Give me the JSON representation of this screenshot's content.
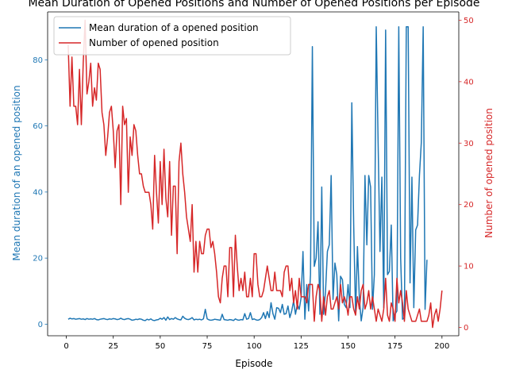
{
  "chart_data": {
    "type": "line",
    "title": "Mean Duration of Opened Positions and Number of Opened Positions per Episode",
    "xlabel": "Episode",
    "ylabel_left": "Mean duration of an opened position",
    "ylabel_right": "Number of opened position",
    "xlim": [
      -9.95,
      208.95
    ],
    "ylim_left": [
      -3.5,
      94.5
    ],
    "ylim_right": [
      -1.35,
      51.35
    ],
    "x_ticks": [
      0,
      25,
      50,
      75,
      100,
      125,
      150,
      175,
      200
    ],
    "y_ticks_left": [
      0,
      20,
      40,
      60,
      80
    ],
    "y_ticks_right": [
      0,
      10,
      20,
      30,
      40,
      50
    ],
    "legend_position": "upper-left",
    "colors": {
      "left": "#1f77b4",
      "right": "#d62728"
    },
    "series": [
      {
        "name": "Mean duration of a opened position",
        "axis": "left",
        "color": "#1f77b4",
        "x_start": 1,
        "values": [
          1.5,
          1.8,
          1.6,
          1.7,
          1.5,
          1.6,
          1.7,
          1.5,
          1.6,
          1.4,
          1.7,
          1.5,
          1.6,
          1.5,
          1.7,
          1.4,
          1.3,
          1.5,
          1.6,
          1.7,
          1.5,
          1.4,
          1.6,
          1.5,
          1.7,
          1.6,
          1.4,
          1.5,
          1.8,
          1.5,
          1.4,
          1.6,
          1.7,
          1.5,
          1.2,
          1.3,
          1.5,
          1.4,
          1.6,
          1.5,
          1.2,
          1.1,
          1.5,
          1.3,
          1.6,
          1.2,
          1.1,
          1.3,
          1.4,
          1.8,
          1.5,
          2.0,
          1.2,
          2.2,
          1.4,
          1.7,
          1.5,
          2.0,
          1.6,
          1.4,
          1.3,
          2.4,
          1.8,
          1.5,
          1.4,
          1.6,
          2.0,
          1.3,
          1.5,
          1.4,
          1.5,
          1.3,
          1.6,
          4.5,
          1.6,
          1.3,
          1.2,
          1.3,
          1.5,
          1.4,
          1.3,
          1.2,
          3.0,
          1.4,
          1.3,
          1.2,
          1.4,
          1.3,
          1.1,
          1.6,
          1.3,
          1.2,
          1.4,
          1.3,
          3.2,
          1.5,
          1.7,
          3.5,
          1.4,
          1.6,
          1.3,
          1.2,
          1.4,
          2.0,
          3.5,
          1.7,
          3.8,
          2.0,
          6.5,
          3.2,
          1.5,
          5.0,
          4.8,
          3.5,
          6.0,
          3.0,
          3.2,
          5.5,
          2.0,
          4.0,
          7.0,
          3.0,
          6.0,
          4.5,
          8.0,
          22.0,
          1.5,
          12.0,
          4.0,
          15.0,
          84.0,
          17.5,
          20.0,
          31.0,
          3.0,
          41.5,
          3.0,
          10.0,
          22.0,
          24.0,
          45.0,
          7.5,
          18.5,
          15.0,
          1.0,
          14.5,
          13.5,
          6.0,
          5.0,
          12.0,
          5.0,
          67.0,
          30.0,
          3.0,
          23.5,
          8.0,
          1.0,
          5.0,
          45.0,
          24.0,
          45.0,
          41.5,
          4.5,
          15.0,
          90.0,
          55.0,
          22.0,
          44.5,
          5.0,
          89.0,
          15.0,
          16.0,
          30.0,
          1.0,
          3.0,
          4.0,
          90.0,
          20.0,
          1.5,
          2.0,
          90.0,
          90.0,
          12.5,
          44.5,
          5.0,
          28.5,
          30.0,
          45.0,
          55.0,
          90.0,
          4.5,
          19.5
        ]
      },
      {
        "name": "Number of opened position",
        "axis": "right",
        "color": "#d62728",
        "x_start": 1,
        "values": [
          46,
          36,
          44,
          36,
          36,
          33,
          42,
          33,
          43,
          50,
          38,
          40,
          43,
          36,
          39,
          37,
          43,
          42,
          35,
          33,
          28,
          31,
          35,
          36,
          32,
          26,
          32,
          33,
          20,
          36,
          33,
          34,
          22,
          31,
          28,
          33,
          32,
          28,
          25,
          25,
          23,
          22,
          22,
          22,
          20,
          16,
          28,
          22,
          17,
          27,
          20,
          29,
          21,
          18,
          27,
          15,
          23,
          23,
          12,
          27,
          30,
          25,
          22,
          18,
          16,
          14,
          20,
          9,
          14,
          9,
          14,
          12,
          12,
          15,
          16,
          16,
          13,
          14,
          12,
          9,
          5,
          4,
          8,
          10,
          10,
          5,
          13,
          13,
          5,
          15,
          10,
          6,
          8,
          6,
          9,
          5,
          5,
          8,
          5,
          12,
          12,
          7,
          5,
          5,
          6,
          8,
          10,
          8,
          6,
          6,
          9,
          6,
          6,
          6,
          5,
          9,
          10,
          10,
          6,
          8,
          4,
          6,
          3,
          8,
          5,
          5,
          5,
          4,
          7,
          7,
          7,
          1,
          5,
          7,
          6,
          1,
          5,
          2,
          5,
          6,
          3,
          3,
          4,
          5,
          3,
          7,
          4,
          5,
          4,
          2,
          5,
          5,
          3,
          2,
          5,
          3,
          6,
          7,
          3,
          4,
          6,
          3,
          5,
          3,
          1,
          3,
          2,
          1,
          3,
          8,
          2,
          1,
          4,
          3,
          1,
          8,
          4,
          6,
          4,
          1,
          6,
          3,
          2,
          1,
          1,
          1,
          2,
          3,
          1,
          1,
          1,
          1,
          2,
          4,
          0,
          2,
          3,
          1,
          3,
          6
        ]
      }
    ]
  }
}
